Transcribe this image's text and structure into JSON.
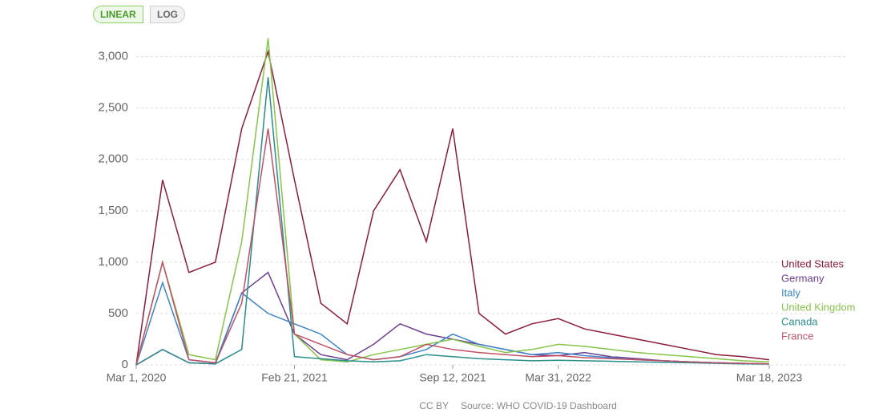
{
  "controls": {
    "linear": "LINEAR",
    "log": "LOG"
  },
  "chart_data": {
    "type": "line",
    "categories": [
      "Mar 1, 2020",
      null,
      null,
      null,
      null,
      null,
      "Feb 21, 2021",
      null,
      null,
      null,
      null,
      null,
      "Sep 12, 2021",
      null,
      null,
      null,
      "Mar 31, 2022",
      null,
      null,
      null,
      null,
      null,
      null,
      null,
      "Mar 18, 2023"
    ],
    "series": [
      {
        "name": "United States",
        "color": "#8c1c3a",
        "values": [
          0,
          1800,
          900,
          1000,
          2300,
          3050,
          1800,
          600,
          400,
          1500,
          1900,
          1200,
          2300,
          500,
          300,
          400,
          450,
          350,
          300,
          250,
          200,
          150,
          100,
          80,
          50
        ]
      },
      {
        "name": "Germany",
        "color": "#6d3e91",
        "values": [
          0,
          150,
          20,
          10,
          700,
          900,
          300,
          100,
          50,
          200,
          400,
          300,
          250,
          200,
          150,
          100,
          90,
          120,
          80,
          60,
          40,
          30,
          20,
          15,
          10
        ]
      },
      {
        "name": "Italy",
        "color": "#3d84c6",
        "values": [
          0,
          800,
          50,
          20,
          700,
          500,
          400,
          300,
          100,
          50,
          80,
          150,
          300,
          200,
          150,
          100,
          120,
          90,
          70,
          50,
          40,
          30,
          20,
          15,
          10
        ]
      },
      {
        "name": "United Kingdom",
        "color": "#86c44a",
        "values": [
          0,
          1000,
          100,
          50,
          1200,
          3180,
          300,
          50,
          30,
          100,
          150,
          200,
          250,
          180,
          120,
          150,
          200,
          180,
          150,
          120,
          100,
          80,
          60,
          40,
          30
        ]
      },
      {
        "name": "Canada",
        "color": "#2a8c8c",
        "values": [
          0,
          150,
          20,
          10,
          150,
          2800,
          80,
          60,
          40,
          30,
          40,
          100,
          80,
          60,
          50,
          40,
          45,
          40,
          35,
          30,
          25,
          20,
          15,
          10,
          8
        ]
      },
      {
        "name": "France",
        "color": "#c15065",
        "values": [
          0,
          1000,
          50,
          20,
          600,
          2300,
          300,
          200,
          100,
          50,
          80,
          200,
          150,
          120,
          100,
          80,
          90,
          70,
          60,
          50,
          40,
          30,
          20,
          15,
          10
        ]
      }
    ],
    "ylim": [
      0,
      3200
    ],
    "yticks": [
      0,
      500,
      {
        "value": 1000,
        "label": "1,000"
      },
      {
        "value": 1500,
        "label": "1,500"
      },
      {
        "value": 2000,
        "label": "2,000"
      },
      {
        "value": 2500,
        "label": "2,500"
      },
      {
        "value": 3000,
        "label": "3,000"
      }
    ],
    "grid": true
  },
  "footer": {
    "license": "CC BY",
    "source": "Source: WHO COVID-19 Dashboard"
  }
}
